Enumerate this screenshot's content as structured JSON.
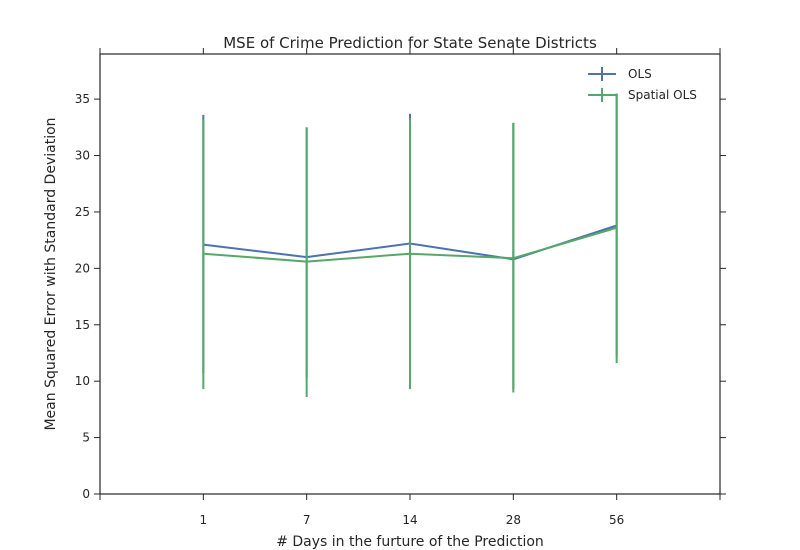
{
  "chart_data": {
    "type": "line",
    "title": "MSE of Crime Prediction for State Senate Districts",
    "xlabel": "# Days in the furture of the Prediction",
    "ylabel": "Mean Squared Error with Standard Deviation",
    "categories": [
      "1",
      "7",
      "14",
      "28",
      "56"
    ],
    "ylim": [
      0,
      39
    ],
    "yticks": [
      0,
      5,
      10,
      15,
      20,
      25,
      30,
      35
    ],
    "grid": false,
    "legend_position": "top-right",
    "series": [
      {
        "name": "OLS",
        "color": "#4c72b0",
        "values": [
          22.1,
          21.0,
          22.2,
          20.8,
          23.8
        ],
        "err_low": [
          10.7,
          10.3,
          10.7,
          9.3,
          12.2
        ],
        "err_high": [
          33.6,
          32.5,
          33.7,
          32.9,
          35.5
        ]
      },
      {
        "name": "Spatial OLS",
        "color": "#55a868",
        "values": [
          21.3,
          20.6,
          21.3,
          20.9,
          23.6
        ],
        "err_low": [
          9.3,
          8.6,
          9.3,
          9.0,
          11.6
        ],
        "err_high": [
          33.2,
          32.5,
          33.3,
          32.9,
          35.5
        ]
      }
    ]
  }
}
